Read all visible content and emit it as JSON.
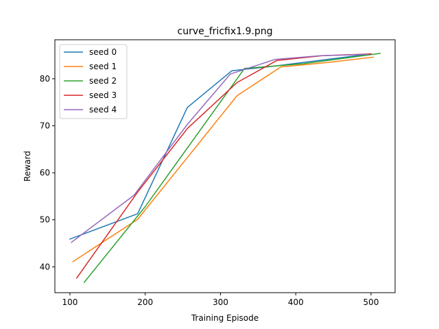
{
  "chart_data": {
    "type": "line",
    "title": "curve_fricfix1.9.png",
    "xlabel": "Training Episode",
    "ylabel": "Reward",
    "xlim": [
      80,
      532
    ],
    "ylim": [
      34.5,
      88.3
    ],
    "xticks": [
      100,
      200,
      300,
      400,
      500
    ],
    "yticks": [
      40,
      50,
      60,
      70,
      80
    ],
    "grid": false,
    "legend": "top-left",
    "series": [
      {
        "name": "seed 0",
        "color": "#1f77b4",
        "points": [
          [
            100,
            45.9
          ],
          [
            190,
            51.3
          ],
          [
            256,
            73.9
          ],
          [
            315,
            81.7
          ],
          [
            372,
            82.7
          ],
          [
            500,
            85.3
          ]
        ]
      },
      {
        "name": "seed 1",
        "color": "#ff7f0e",
        "points": [
          [
            104,
            41.1
          ],
          [
            190,
            50.1
          ],
          [
            322,
            76.4
          ],
          [
            380,
            82.5
          ],
          [
            445,
            83.5
          ],
          [
            503,
            84.6
          ]
        ]
      },
      {
        "name": "seed 2",
        "color": "#2ca02c",
        "points": [
          [
            119,
            36.7
          ],
          [
            200,
            52.8
          ],
          [
            332,
            82.2
          ],
          [
            410,
            83.2
          ],
          [
            512,
            85.4
          ]
        ]
      },
      {
        "name": "seed 3",
        "color": "#d62728",
        "points": [
          [
            109,
            37.6
          ],
          [
            190,
            55.9
          ],
          [
            256,
            69.4
          ],
          [
            322,
            79.2
          ],
          [
            375,
            83.9
          ],
          [
            435,
            84.9
          ],
          [
            500,
            85.3
          ]
        ]
      },
      {
        "name": "seed 4",
        "color": "#9467bd",
        "points": [
          [
            102,
            45.2
          ],
          [
            185,
            55.2
          ],
          [
            256,
            70.3
          ],
          [
            313,
            81.0
          ],
          [
            372,
            84.1
          ],
          [
            433,
            84.9
          ],
          [
            496,
            85.2
          ]
        ]
      }
    ]
  }
}
